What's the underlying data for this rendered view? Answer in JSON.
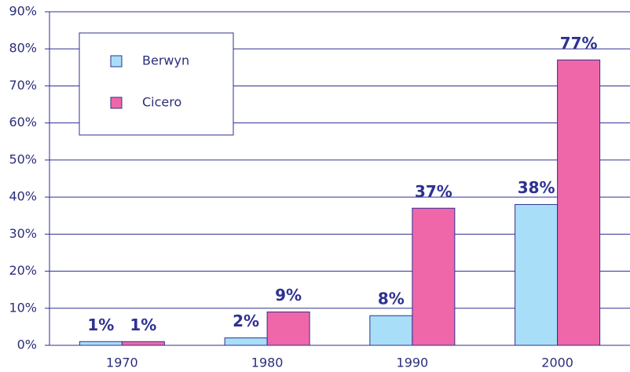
{
  "chart_data": {
    "type": "bar",
    "categories": [
      "1970",
      "1980",
      "1990",
      "2000"
    ],
    "series": [
      {
        "name": "Berwyn",
        "color": "#a9def8",
        "values": [
          1,
          2,
          8,
          38
        ],
        "value_labels": [
          "1%",
          "2%",
          "8%",
          "38%"
        ]
      },
      {
        "name": "Cicero",
        "color": "#ef67a9",
        "values": [
          1,
          9,
          37,
          77
        ],
        "value_labels": [
          "1%",
          "9%",
          "37%",
          "77%"
        ]
      }
    ],
    "ylim": [
      0,
      90
    ],
    "yticks": [
      {
        "value": 0,
        "label": "0%"
      },
      {
        "value": 10,
        "label": "10%"
      },
      {
        "value": 20,
        "label": "20%"
      },
      {
        "value": 30,
        "label": "30%"
      },
      {
        "value": 40,
        "label": "40%"
      },
      {
        "value": 50,
        "label": "50%"
      },
      {
        "value": 60,
        "label": "60%"
      },
      {
        "value": 70,
        "label": "70%"
      },
      {
        "value": 80,
        "label": "80%"
      },
      {
        "value": 90,
        "label": "90%"
      }
    ],
    "grid": true,
    "legend": "upper left"
  }
}
